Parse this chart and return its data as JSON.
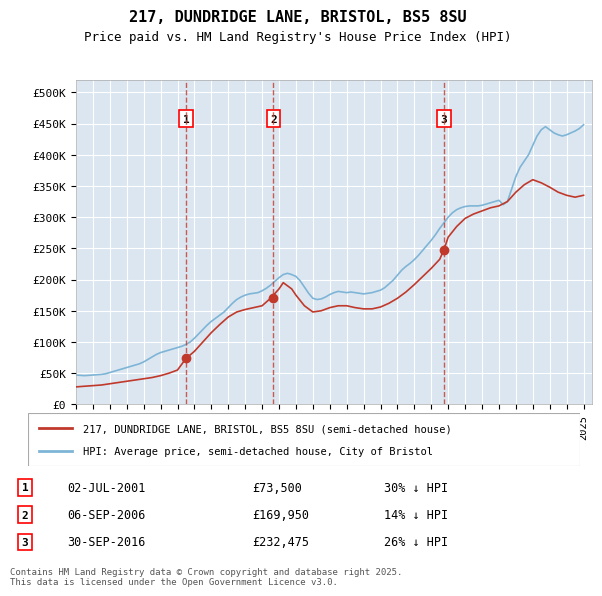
{
  "title": "217, DUNDRIDGE LANE, BRISTOL, BS5 8SU",
  "subtitle": "Price paid vs. HM Land Registry's House Price Index (HPI)",
  "ylabel_ticks": [
    "£0",
    "£50K",
    "£100K",
    "£150K",
    "£200K",
    "£250K",
    "£300K",
    "£350K",
    "£400K",
    "£450K",
    "£500K"
  ],
  "ytick_values": [
    0,
    50000,
    100000,
    150000,
    200000,
    250000,
    300000,
    350000,
    400000,
    450000,
    500000
  ],
  "ylim": [
    0,
    520000
  ],
  "xlim_start": 1995.0,
  "xlim_end": 2025.5,
  "background_color": "#dce6f1",
  "plot_bg_color": "#dce6f1",
  "hpi_color": "#7eb5d6",
  "price_color": "#c0392b",
  "sale_marker_color": "#c0392b",
  "vline_color": "#c0392b",
  "vline_style": "dashed",
  "legend_label_price": "217, DUNDRIDGE LANE, BRISTOL, BS5 8SU (semi-detached house)",
  "legend_label_hpi": "HPI: Average price, semi-detached house, City of Bristol",
  "sales": [
    {
      "num": 1,
      "date_label": "02-JUL-2001",
      "price": 73500,
      "pct": "30%",
      "direction": "↓",
      "x": 2001.5
    },
    {
      "num": 2,
      "date_label": "06-SEP-2006",
      "price": 169950,
      "pct": "14%",
      "direction": "↓",
      "x": 2006.67
    },
    {
      "num": 3,
      "date_label": "30-SEP-2016",
      "price": 232475,
      "pct": "26%",
      "direction": "↓",
      "x": 2016.75
    }
  ],
  "footer_text": "Contains HM Land Registry data © Crown copyright and database right 2025.\nThis data is licensed under the Open Government Licence v3.0.",
  "hpi_data_x": [
    1995.0,
    1995.25,
    1995.5,
    1995.75,
    1996.0,
    1996.25,
    1996.5,
    1996.75,
    1997.0,
    1997.25,
    1997.5,
    1997.75,
    1998.0,
    1998.25,
    1998.5,
    1998.75,
    1999.0,
    1999.25,
    1999.5,
    1999.75,
    2000.0,
    2000.25,
    2000.5,
    2000.75,
    2001.0,
    2001.25,
    2001.5,
    2001.75,
    2002.0,
    2002.25,
    2002.5,
    2002.75,
    2003.0,
    2003.25,
    2003.5,
    2003.75,
    2004.0,
    2004.25,
    2004.5,
    2004.75,
    2005.0,
    2005.25,
    2005.5,
    2005.75,
    2006.0,
    2006.25,
    2006.5,
    2006.75,
    2007.0,
    2007.25,
    2007.5,
    2007.75,
    2008.0,
    2008.25,
    2008.5,
    2008.75,
    2009.0,
    2009.25,
    2009.5,
    2009.75,
    2010.0,
    2010.25,
    2010.5,
    2010.75,
    2011.0,
    2011.25,
    2011.5,
    2011.75,
    2012.0,
    2012.25,
    2012.5,
    2012.75,
    2013.0,
    2013.25,
    2013.5,
    2013.75,
    2014.0,
    2014.25,
    2014.5,
    2014.75,
    2015.0,
    2015.25,
    2015.5,
    2015.75,
    2016.0,
    2016.25,
    2016.5,
    2016.75,
    2017.0,
    2017.25,
    2017.5,
    2017.75,
    2018.0,
    2018.25,
    2018.5,
    2018.75,
    2019.0,
    2019.25,
    2019.5,
    2019.75,
    2020.0,
    2020.25,
    2020.5,
    2020.75,
    2021.0,
    2021.25,
    2021.5,
    2021.75,
    2022.0,
    2022.25,
    2022.5,
    2022.75,
    2023.0,
    2023.25,
    2023.5,
    2023.75,
    2024.0,
    2024.25,
    2024.5,
    2024.75,
    2025.0
  ],
  "hpi_data_y": [
    47000,
    46500,
    46000,
    46500,
    47000,
    47500,
    48000,
    49000,
    51000,
    53000,
    55000,
    57000,
    59000,
    61000,
    63000,
    65000,
    68000,
    72000,
    76000,
    80000,
    83000,
    85000,
    87000,
    89000,
    91000,
    93000,
    96000,
    100000,
    106000,
    113000,
    120000,
    127000,
    133000,
    138000,
    143000,
    148000,
    155000,
    162000,
    168000,
    172000,
    175000,
    177000,
    178000,
    179000,
    182000,
    186000,
    191000,
    197000,
    203000,
    208000,
    210000,
    208000,
    205000,
    198000,
    188000,
    178000,
    170000,
    168000,
    169000,
    172000,
    176000,
    179000,
    181000,
    180000,
    179000,
    180000,
    179000,
    178000,
    177000,
    178000,
    179000,
    181000,
    183000,
    187000,
    193000,
    199000,
    207000,
    215000,
    221000,
    226000,
    232000,
    239000,
    247000,
    255000,
    263000,
    272000,
    282000,
    291000,
    300000,
    307000,
    312000,
    315000,
    317000,
    318000,
    318000,
    318000,
    319000,
    321000,
    323000,
    325000,
    327000,
    320000,
    325000,
    345000,
    365000,
    380000,
    390000,
    400000,
    415000,
    430000,
    440000,
    445000,
    440000,
    435000,
    432000,
    430000,
    432000,
    435000,
    438000,
    442000,
    448000
  ],
  "price_data_x": [
    1995.0,
    1995.5,
    1996.0,
    1996.5,
    1997.0,
    1997.5,
    1998.0,
    1998.5,
    1999.0,
    1999.5,
    2000.0,
    2000.5,
    2001.0,
    2001.5,
    2002.0,
    2002.5,
    2003.0,
    2003.5,
    2004.0,
    2004.5,
    2005.0,
    2005.5,
    2006.0,
    2006.5,
    2007.0,
    2007.25,
    2007.5,
    2007.75,
    2008.0,
    2008.5,
    2009.0,
    2009.5,
    2010.0,
    2010.5,
    2011.0,
    2011.5,
    2012.0,
    2012.5,
    2013.0,
    2013.5,
    2014.0,
    2014.5,
    2015.0,
    2015.5,
    2016.0,
    2016.5,
    2016.75,
    2017.0,
    2017.5,
    2018.0,
    2018.5,
    2019.0,
    2019.5,
    2020.0,
    2020.5,
    2021.0,
    2021.5,
    2022.0,
    2022.5,
    2023.0,
    2023.5,
    2024.0,
    2024.5,
    2025.0
  ],
  "price_data_y": [
    28000,
    29000,
    30000,
    31000,
    33000,
    35000,
    37000,
    39000,
    41000,
    43000,
    46000,
    50000,
    55000,
    73500,
    85000,
    100000,
    115000,
    128000,
    140000,
    148000,
    152000,
    155000,
    158000,
    169950,
    185000,
    195000,
    190000,
    185000,
    175000,
    158000,
    148000,
    150000,
    155000,
    158000,
    158000,
    155000,
    153000,
    153000,
    156000,
    162000,
    170000,
    180000,
    192000,
    205000,
    218000,
    232475,
    248000,
    268000,
    285000,
    298000,
    305000,
    310000,
    315000,
    318000,
    325000,
    340000,
    352000,
    360000,
    355000,
    348000,
    340000,
    335000,
    332000,
    335000
  ]
}
